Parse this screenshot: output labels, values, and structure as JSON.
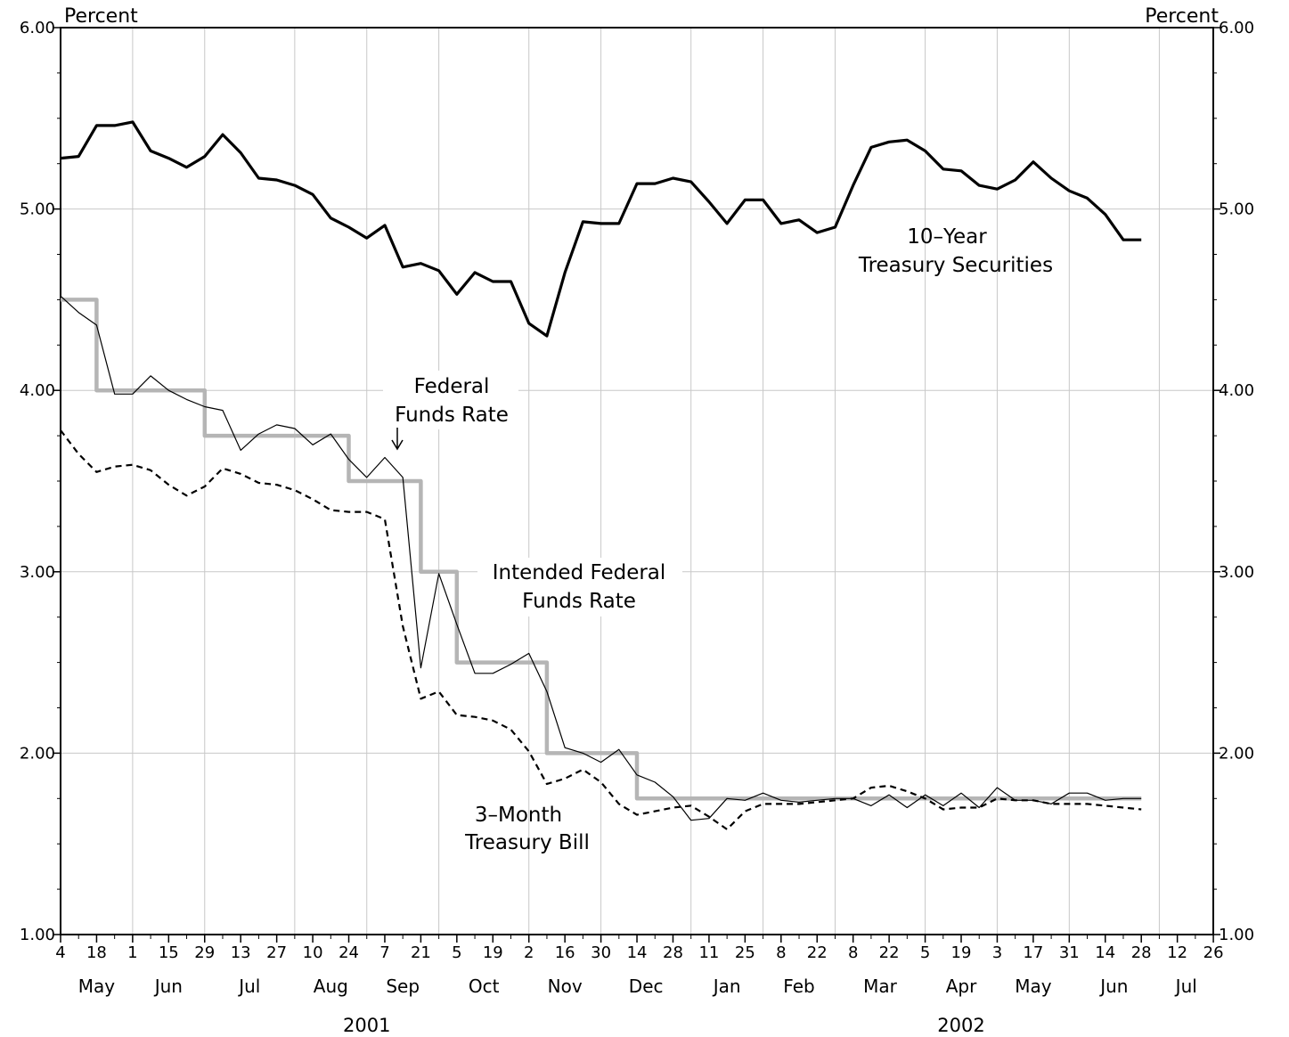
{
  "chart_data": {
    "type": "line",
    "y_axis": {
      "left_unit": "Percent",
      "right_unit": "Percent",
      "range": [
        1.0,
        6.0
      ],
      "ticks": [
        "1.00",
        "2.00",
        "3.00",
        "4.00",
        "5.00",
        "6.00"
      ]
    },
    "x_axis": {
      "weekly_ticks": [
        "4",
        "18",
        "1",
        "15",
        "29",
        "13",
        "27",
        "10",
        "24",
        "7",
        "21",
        "5",
        "19",
        "2",
        "16",
        "30",
        "14",
        "28",
        "11",
        "25",
        "8",
        "22",
        "8",
        "22",
        "5",
        "19",
        "3",
        "17",
        "31",
        "14",
        "28",
        "12",
        "26"
      ],
      "months": [
        "May",
        "Jun",
        "Jul",
        "Aug",
        "Sep",
        "Oct",
        "Nov",
        "Dec",
        "Jan",
        "Feb",
        "Mar",
        "Apr",
        "May",
        "Jun",
        "Jul"
      ],
      "years": [
        "2001",
        "2002"
      ]
    },
    "grid": true,
    "annotations": {
      "ten_year": [
        "10–Year",
        "Treasury Securities"
      ],
      "fed_funds": [
        "Federal",
        "Funds Rate"
      ],
      "intended": [
        "Intended Federal",
        "Funds Rate"
      ],
      "tbill": [
        "3–Month",
        "Treasury Bill"
      ]
    },
    "series": [
      {
        "key": "ten_year",
        "x": [
          0,
          1,
          2,
          3,
          4,
          5,
          6,
          7,
          8,
          9,
          10,
          11,
          12,
          13,
          14,
          15,
          16,
          17,
          18,
          19,
          20,
          21,
          22,
          23,
          24,
          25,
          26,
          27,
          28,
          29,
          30,
          31,
          32,
          33,
          34,
          35,
          36,
          37,
          38,
          39,
          40,
          41,
          42,
          43,
          44,
          45,
          46,
          47,
          48,
          49,
          50,
          51,
          52,
          53,
          54,
          55,
          56,
          57,
          58,
          59,
          60
        ],
        "values": [
          5.28,
          5.29,
          5.46,
          5.46,
          5.48,
          5.32,
          5.28,
          5.23,
          5.29,
          5.41,
          5.31,
          5.17,
          5.16,
          5.13,
          5.08,
          4.95,
          4.9,
          4.84,
          4.91,
          4.68,
          4.7,
          4.66,
          4.53,
          4.65,
          4.6,
          4.6,
          4.37,
          4.3,
          4.65,
          4.93,
          4.92,
          4.92,
          5.14,
          5.14,
          5.17,
          5.15,
          5.04,
          4.92,
          5.05,
          5.05,
          4.92,
          4.94,
          4.87,
          4.9,
          5.13,
          5.34,
          5.37,
          5.38,
          5.32,
          5.22,
          5.21,
          5.13,
          5.11,
          5.16,
          5.26,
          5.17,
          5.1,
          5.06,
          4.97,
          4.83,
          4.83
        ]
      },
      {
        "key": "fed_funds",
        "x": [
          0,
          1,
          2,
          3,
          4,
          5,
          6,
          7,
          8,
          9,
          10,
          11,
          12,
          13,
          14,
          15,
          16,
          17,
          18,
          19,
          20,
          21,
          22,
          23,
          24,
          25,
          26,
          27,
          28,
          29,
          30,
          31,
          32,
          33,
          34,
          35,
          36,
          37,
          38,
          39,
          40,
          41,
          42,
          43,
          44,
          45,
          46,
          47,
          48,
          49,
          50,
          51,
          52,
          53,
          54,
          55,
          56,
          57,
          58,
          59,
          60
        ],
        "values": [
          4.52,
          4.43,
          4.36,
          3.98,
          3.98,
          4.08,
          4.0,
          3.95,
          3.91,
          3.89,
          3.67,
          3.76,
          3.81,
          3.79,
          3.7,
          3.76,
          3.62,
          3.52,
          3.63,
          3.52,
          2.47,
          2.99,
          2.71,
          2.44,
          2.44,
          2.49,
          2.55,
          2.34,
          2.03,
          2.0,
          1.95,
          2.02,
          1.88,
          1.84,
          1.76,
          1.63,
          1.64,
          1.75,
          1.74,
          1.78,
          1.74,
          1.73,
          1.74,
          1.75,
          1.75,
          1.71,
          1.77,
          1.7,
          1.77,
          1.71,
          1.78,
          1.7,
          1.81,
          1.74,
          1.74,
          1.72,
          1.78,
          1.78,
          1.74,
          1.75,
          1.75
        ]
      },
      {
        "key": "tbill",
        "x": [
          0,
          1,
          2,
          3,
          4,
          5,
          6,
          7,
          8,
          9,
          10,
          11,
          12,
          13,
          14,
          15,
          16,
          17,
          18,
          19,
          20,
          21,
          22,
          23,
          24,
          25,
          26,
          27,
          28,
          29,
          30,
          31,
          32,
          33,
          34,
          35,
          36,
          37,
          38,
          39,
          40,
          41,
          42,
          43,
          44,
          45,
          46,
          47,
          48,
          49,
          50,
          51,
          52,
          53,
          54,
          55,
          56,
          57,
          58,
          59,
          60
        ],
        "values": [
          3.78,
          3.65,
          3.55,
          3.58,
          3.59,
          3.56,
          3.48,
          3.42,
          3.47,
          3.57,
          3.54,
          3.49,
          3.48,
          3.45,
          3.4,
          3.34,
          3.33,
          3.33,
          3.29,
          2.7,
          2.3,
          2.34,
          2.21,
          2.2,
          2.18,
          2.13,
          2.01,
          1.83,
          1.86,
          1.91,
          1.84,
          1.72,
          1.66,
          1.68,
          1.7,
          1.71,
          1.65,
          1.58,
          1.68,
          1.72,
          1.72,
          1.72,
          1.73,
          1.74,
          1.75,
          1.81,
          1.82,
          1.79,
          1.75,
          1.69,
          1.7,
          1.7,
          1.75,
          1.74,
          1.74,
          1.72,
          1.72,
          1.72,
          1.71,
          1.7,
          1.69
        ]
      },
      {
        "key": "intended",
        "x": [
          0,
          2,
          2,
          8,
          8,
          16,
          16,
          20,
          20,
          22,
          22,
          27,
          27,
          32,
          32,
          60
        ],
        "values": [
          4.5,
          4.5,
          4.0,
          4.0,
          3.75,
          3.75,
          3.5,
          3.5,
          3.0,
          3.0,
          2.5,
          2.5,
          2.0,
          2.0,
          1.75,
          1.75
        ]
      }
    ]
  }
}
